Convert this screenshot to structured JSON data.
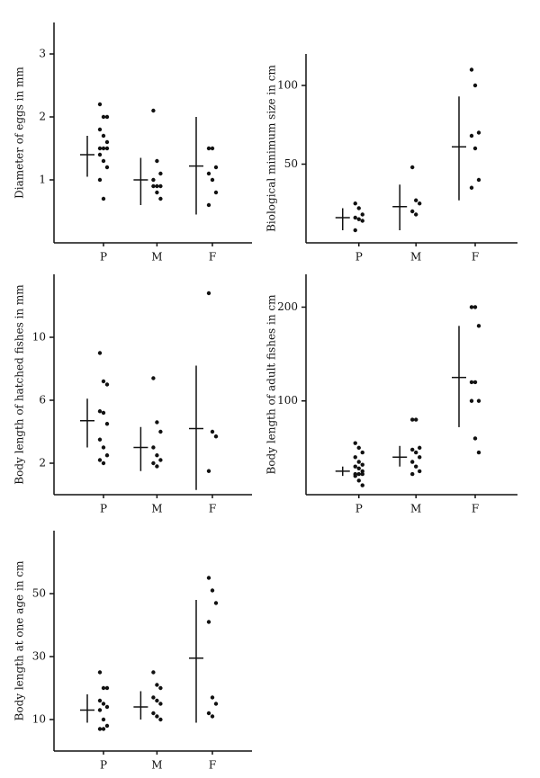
{
  "chart_data": [
    {
      "type": "dot-range",
      "y_label": "Diameter of eggs in mm",
      "categories": [
        "P",
        "M",
        "F"
      ],
      "ylim": [
        0,
        3.5
      ],
      "yticks": [
        1,
        2,
        3
      ],
      "points": [
        [
          2.2,
          2.0,
          2.0,
          1.8,
          1.7,
          1.6,
          1.5,
          1.5,
          1.5,
          1.4,
          1.3,
          1.2,
          1.0,
          0.7
        ],
        [
          2.1,
          1.3,
          1.1,
          1.0,
          0.9,
          0.9,
          0.9,
          0.8,
          0.7
        ],
        [
          1.5,
          1.5,
          1.2,
          1.1,
          1.0,
          0.8,
          0.6
        ]
      ],
      "means": [
        1.4,
        1.0,
        1.22
      ],
      "ranges": [
        [
          1.05,
          1.7
        ],
        [
          0.6,
          1.35
        ],
        [
          0.45,
          2.0
        ]
      ]
    },
    {
      "type": "dot-range",
      "y_label": "Biological minimum size in cm",
      "categories": [
        "P",
        "M",
        "F"
      ],
      "ylim": [
        0,
        120
      ],
      "yticks": [
        50,
        100
      ],
      "points": [
        [
          25,
          22,
          18,
          16,
          15,
          14,
          8
        ],
        [
          48,
          27,
          25,
          20,
          18
        ],
        [
          110,
          100,
          70,
          68,
          60,
          40,
          35
        ]
      ],
      "means": [
        16,
        23,
        61
      ],
      "ranges": [
        [
          8,
          22
        ],
        [
          8,
          37
        ],
        [
          27,
          93
        ]
      ]
    },
    {
      "type": "dot-range",
      "y_label": "Body length of hatched fishes in mm",
      "categories": [
        "P",
        "M",
        "F"
      ],
      "ylim": [
        0,
        14
      ],
      "yticks": [
        2,
        6,
        10
      ],
      "points": [
        [
          9.0,
          7.2,
          7.0,
          5.3,
          5.2,
          4.5,
          3.5,
          3.0,
          2.5,
          2.2,
          2.0
        ],
        [
          7.4,
          4.6,
          4.0,
          3.0,
          2.5,
          2.2,
          2.0,
          1.8
        ],
        [
          12.8,
          4.0,
          3.7,
          1.5
        ]
      ],
      "means": [
        4.7,
        3.0,
        4.2
      ],
      "ranges": [
        [
          3.0,
          6.1
        ],
        [
          1.5,
          4.3
        ],
        [
          0.3,
          8.2
        ]
      ]
    },
    {
      "type": "dot-range",
      "y_label": "Body length of adult fishes in cm",
      "categories": [
        "P",
        "M",
        "F"
      ],
      "ylim": [
        0,
        235
      ],
      "yticks": [
        100,
        200
      ],
      "points": [
        [
          55,
          50,
          45,
          40,
          35,
          32,
          30,
          28,
          25,
          22,
          22,
          22,
          20,
          15,
          10
        ],
        [
          80,
          80,
          50,
          48,
          45,
          40,
          35,
          30,
          25,
          22
        ],
        [
          200,
          200,
          180,
          120,
          120,
          100,
          100,
          60,
          45
        ]
      ],
      "means": [
        25,
        40,
        125
      ],
      "ranges": [
        [
          20,
          30
        ],
        [
          30,
          52
        ],
        [
          72,
          180
        ]
      ]
    },
    {
      "type": "dot-range",
      "y_label": "Body length at one age in cm",
      "categories": [
        "P",
        "M",
        "F"
      ],
      "ylim": [
        0,
        70
      ],
      "yticks": [
        10,
        30,
        50
      ],
      "points": [
        [
          25,
          20,
          20,
          16,
          15,
          14,
          13,
          10,
          8,
          7,
          7
        ],
        [
          25,
          21,
          20,
          17,
          16,
          15,
          12,
          11,
          10
        ],
        [
          55,
          51,
          47,
          41,
          17,
          15,
          12,
          11
        ]
      ],
      "means": [
        13,
        14,
        29.5
      ],
      "ranges": [
        [
          9,
          18
        ],
        [
          10,
          19
        ],
        [
          9,
          48
        ]
      ]
    }
  ]
}
